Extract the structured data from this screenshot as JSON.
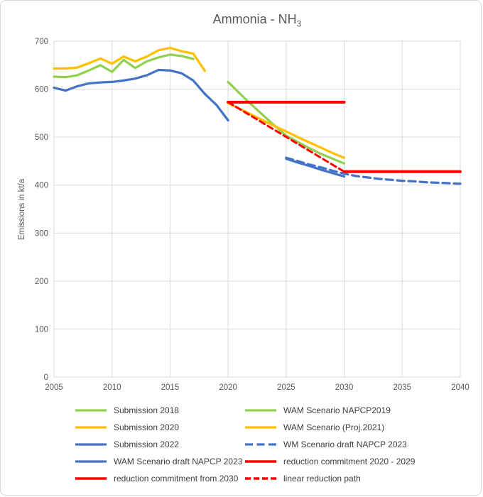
{
  "title": {
    "main": "Ammonia - NH",
    "sub": "3"
  },
  "colors": {
    "green": "#92D050",
    "yellow": "#FFC000",
    "blue": "#4472C4",
    "red": "#FF0000",
    "grid": "#D9D9D9",
    "axis_text": "#595959",
    "legend_text": "#404040"
  },
  "chart_data": {
    "type": "line",
    "title": "Ammonia - NH3",
    "xlabel": "",
    "ylabel": "Emissions in kt/a",
    "xlim": [
      2005,
      2040
    ],
    "ylim": [
      0,
      700
    ],
    "x_ticks": [
      2005,
      2010,
      2015,
      2020,
      2025,
      2030,
      2035,
      2040
    ],
    "y_ticks": [
      0,
      100,
      200,
      300,
      400,
      500,
      600,
      700
    ],
    "grid": true,
    "legend_position": "bottom",
    "series": [
      {
        "name": "Submission 2018",
        "color": "#92D050",
        "style": "solid",
        "width": 3.25,
        "x": [
          2005,
          2006,
          2007,
          2008,
          2009,
          2010,
          2011,
          2012,
          2013,
          2014,
          2015,
          2016,
          2017
        ],
        "values": [
          626,
          625,
          629,
          639,
          650,
          636,
          661,
          644,
          658,
          666,
          672,
          669,
          663
        ]
      },
      {
        "name": "Submission 2020",
        "color": "#FFC000",
        "style": "solid",
        "width": 3.25,
        "x": [
          2005,
          2006,
          2007,
          2008,
          2009,
          2010,
          2011,
          2012,
          2013,
          2014,
          2015,
          2016,
          2017,
          2018
        ],
        "values": [
          643,
          643,
          645,
          654,
          664,
          653,
          668,
          658,
          668,
          681,
          686,
          679,
          674,
          638
        ]
      },
      {
        "name": "Submission 2022",
        "color": "#4472C4",
        "style": "solid",
        "width": 3.25,
        "x": [
          2005,
          2006,
          2007,
          2008,
          2009,
          2010,
          2011,
          2012,
          2013,
          2014,
          2015,
          2016,
          2017,
          2018,
          2019,
          2020
        ],
        "values": [
          603,
          597,
          606,
          612,
          614,
          615,
          618,
          622,
          629,
          640,
          639,
          633,
          618,
          590,
          567,
          535
        ]
      },
      {
        "name": "WAM Scenario NAPCP2019",
        "color": "#92D050",
        "style": "solid",
        "width": 3.25,
        "x": [
          2020,
          2021,
          2022,
          2023,
          2024,
          2025,
          2026,
          2027,
          2028,
          2029,
          2030
        ],
        "values": [
          615,
          591,
          568,
          546,
          524,
          503,
          490,
          477,
          465,
          455,
          445
        ]
      },
      {
        "name": "WAM Scenario (Proj.2021)",
        "color": "#FFC000",
        "style": "solid",
        "width": 3.25,
        "x": [
          2020,
          2021,
          2022,
          2023,
          2024,
          2025,
          2026,
          2027,
          2028,
          2029,
          2030
        ],
        "values": [
          571,
          559,
          547,
          535,
          523,
          512,
          500,
          489,
          478,
          467,
          457
        ]
      },
      {
        "name": "WAM Scenario draft NAPCP 2023",
        "color": "#4472C4",
        "style": "solid",
        "width": 3.25,
        "x": [
          2025,
          2026,
          2027,
          2028,
          2029,
          2030
        ],
        "values": [
          455,
          447,
          440,
          432,
          425,
          418
        ]
      },
      {
        "name": "WM Scenario draft NAPCP 2023",
        "color": "#4472C4",
        "style": "dashed",
        "width": 3.25,
        "x": [
          2025,
          2026,
          2027,
          2028,
          2029,
          2030,
          2031,
          2032,
          2033,
          2034,
          2035,
          2036,
          2037,
          2038,
          2039,
          2040
        ],
        "values": [
          457,
          450,
          443,
          437,
          430,
          424,
          419,
          416,
          413,
          411,
          409,
          408,
          406,
          405,
          404,
          403
        ]
      },
      {
        "name": "linear reduction path",
        "color": "#FF0000",
        "style": "dashed",
        "width": 3,
        "x": [
          2020,
          2030
        ],
        "values": [
          573,
          428
        ]
      },
      {
        "name": "reduction commitment 2020 - 2029",
        "color": "#FF0000",
        "style": "solid",
        "width": 4,
        "x": [
          2020,
          2030
        ],
        "values": [
          573,
          573
        ]
      },
      {
        "name": "reduction commitment from 2030",
        "color": "#FF0000",
        "style": "solid",
        "width": 4,
        "x": [
          2030,
          2040
        ],
        "values": [
          428,
          428
        ]
      }
    ]
  },
  "legend": {
    "position": "bottom",
    "columns": [
      [
        {
          "label": "Submission 2018",
          "color": "#92D050",
          "style": "solid"
        },
        {
          "label": "Submission 2020",
          "color": "#FFC000",
          "style": "solid"
        },
        {
          "label": "Submission 2022",
          "color": "#4472C4",
          "style": "solid"
        },
        {
          "label": "WAM Scenario draft NAPCP 2023",
          "color": "#4472C4",
          "style": "solid"
        },
        {
          "label": "reduction commitment from 2030",
          "color": "#FF0000",
          "style": "solid"
        }
      ],
      [
        {
          "label": "WAM Scenario NAPCP2019",
          "color": "#92D050",
          "style": "solid"
        },
        {
          "label": "WAM Scenario (Proj.2021)",
          "color": "#FFC000",
          "style": "solid"
        },
        {
          "label": "WM Scenario draft NAPCP 2023",
          "color": "#4472C4",
          "style": "dashed"
        },
        {
          "label": "reduction commitment 2020 - 2029",
          "color": "#FF0000",
          "style": "solid"
        },
        {
          "label": "linear reduction path",
          "color": "#FF0000",
          "style": "dashed"
        }
      ]
    ]
  }
}
